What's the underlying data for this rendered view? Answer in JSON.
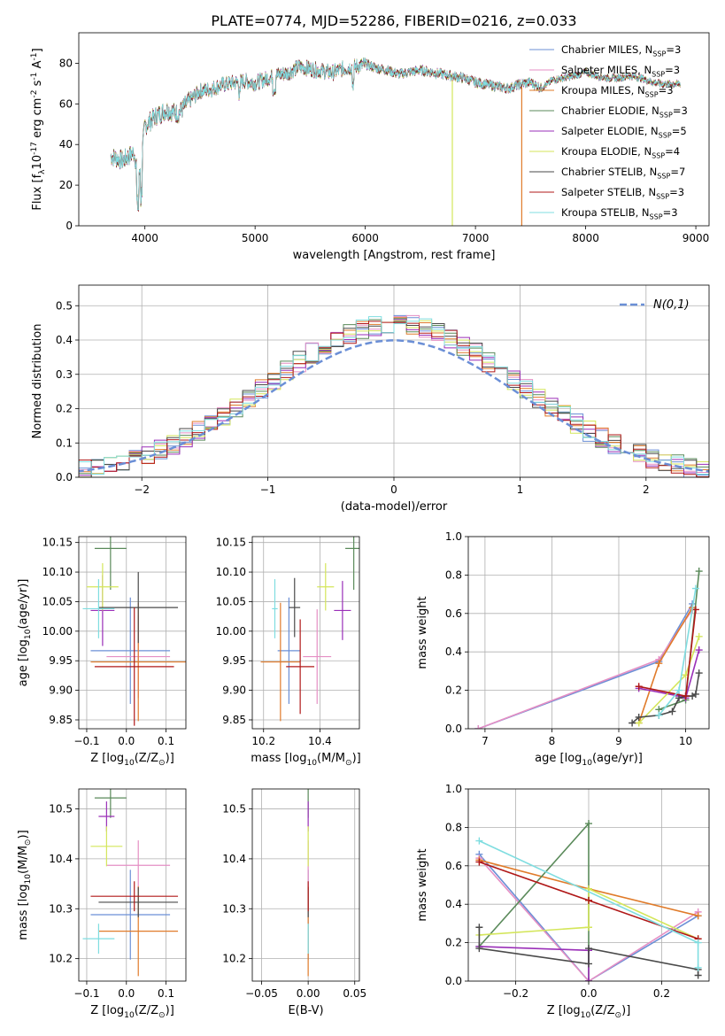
{
  "figure_title": "PLATE=0774, MJD=52286, FIBERID=0216, z=0.033",
  "colors": {
    "Chabrier MILES": "#6b8fd6",
    "Salpeter MILES": "#e58fc4",
    "Kroupa MILES": "#e07b2a",
    "Chabrier ELODIE": "#5a8a5a",
    "Salpeter ELODIE": "#9a2fb8",
    "Kroupa ELODIE": "#d4e65a",
    "Chabrier STELIB": "#4a4a4a",
    "Salpeter STELIB": "#b01818",
    "Kroupa STELIB": "#7fdde0",
    "normal_curve": "#6b8fd6"
  },
  "chart_data": [
    {
      "id": "spectrum",
      "type": "line",
      "title": "PLATE=0774, MJD=52286, FIBERID=0216, z=0.033",
      "xlabel": "wavelength [Angstrom, rest frame]",
      "ylabel": "Flux [f$_\\lambda$10$^{-17}$ erg cm$^{-2}$ s$^{-1}$ A$^{-1}$]",
      "xlim": [
        3400,
        9120
      ],
      "ylim": [
        0,
        95
      ],
      "xticks": [
        "4000",
        "5000",
        "6000",
        "7000",
        "8000",
        "9000"
      ],
      "yticks": [
        "0",
        "20",
        "40",
        "60",
        "80"
      ],
      "grid": false,
      "legend_position": "top-right",
      "x": [
        3700,
        3800,
        3900,
        3950,
        4000,
        4100,
        4200,
        4300,
        4400,
        4500,
        4600,
        4700,
        4800,
        4900,
        5000,
        5100,
        5200,
        5300,
        5400,
        5500,
        5600,
        5700,
        5800,
        5900,
        6000,
        6100,
        6200,
        6300,
        6400,
        6500,
        6600,
        6700,
        6800,
        6900,
        7000,
        7100,
        7200,
        7300,
        7400,
        7500,
        7600,
        7700,
        7800,
        7900,
        8000,
        8100,
        8200,
        8300,
        8400,
        8500,
        8600,
        8700,
        8800
      ],
      "y": [
        35,
        33,
        37,
        25,
        50,
        55,
        58,
        56,
        62,
        67,
        68,
        70,
        71,
        72,
        71,
        73,
        75,
        76,
        79,
        78,
        77,
        76,
        78,
        79,
        80,
        78,
        77,
        75,
        76,
        77,
        76,
        75,
        74,
        73,
        71,
        70,
        69,
        68,
        70,
        71,
        68,
        72,
        73,
        74,
        76,
        74,
        73,
        73,
        74,
        73,
        71,
        70,
        70
      ],
      "series": [
        {
          "name": "Chabrier MILES, N$_{SSP}$=3"
        },
        {
          "name": "Salpeter MILES, N$_{SSP}$=3"
        },
        {
          "name": "Kroupa MILES, N$_{SSP}$=3",
          "drop_at": 7420
        },
        {
          "name": "Chabrier ELODIE, N$_{SSP}$=3"
        },
        {
          "name": "Salpeter ELODIE, N$_{SSP}$=5"
        },
        {
          "name": "Kroupa ELODIE, N$_{SSP}$=4",
          "drop_at": 6790
        },
        {
          "name": "Chabrier STELIB, N$_{SSP}$=7"
        },
        {
          "name": "Salpeter STELIB, N$_{SSP}$=3"
        },
        {
          "name": "Kroupa STELIB, N$_{SSP}$=3"
        }
      ]
    },
    {
      "id": "residuals",
      "type": "line",
      "xlabel": "(data-model)/error",
      "ylabel": "Normed distribution",
      "xlim": [
        -2.5,
        2.5
      ],
      "ylim": [
        0,
        0.56
      ],
      "xticks": [
        "−2",
        "−1",
        "0",
        "1",
        "2"
      ],
      "yticks": [
        "0.0",
        "0.1",
        "0.2",
        "0.3",
        "0.4",
        "0.5"
      ],
      "grid": true,
      "legend_position": "top-right",
      "curve_label": "$\\mathcal{N}(0,1)$",
      "bin_width": 0.1
    },
    {
      "id": "age_vs_Z",
      "type": "scatter",
      "xlabel": "Z [log$_{10}$(Z/Z$_\\odot$)]",
      "ylabel": "age  [log$_{10}$(age/yr)]",
      "xlim": [
        -0.12,
        0.15
      ],
      "ylim": [
        9.835,
        10.16
      ],
      "xticks": [
        "−0.1",
        "0.0",
        "0.1"
      ],
      "yticks": [
        "9.85",
        "9.90",
        "9.95",
        "10.00",
        "10.05",
        "10.10",
        "10.15"
      ],
      "grid": true,
      "points": [
        {
          "model": "Chabrier MILES",
          "x": 0.01,
          "xerr": 0.1,
          "y": 9.967,
          "yerr": 0.09
        },
        {
          "model": "Salpeter MILES",
          "x": 0.03,
          "xerr": 0.08,
          "y": 9.957,
          "yerr": 0.07
        },
        {
          "model": "Kroupa MILES",
          "x": 0.03,
          "xerr": 0.12,
          "y": 9.948,
          "yerr": 0.1
        },
        {
          "model": "Chabrier ELODIE",
          "x": -0.04,
          "xerr": 0.04,
          "y": 10.14,
          "yerr": 0.07
        },
        {
          "model": "Salpeter ELODIE",
          "x": -0.06,
          "xerr": 0.03,
          "y": 10.035,
          "yerr": 0.06
        },
        {
          "model": "Kroupa ELODIE",
          "x": -0.06,
          "xerr": 0.04,
          "y": 10.075,
          "yerr": 0.04
        },
        {
          "model": "Chabrier STELIB",
          "x": 0.03,
          "xerr": 0.1,
          "y": 10.04,
          "yerr": 0.06
        },
        {
          "model": "Salpeter STELIB",
          "x": 0.02,
          "xerr": 0.1,
          "y": 9.94,
          "yerr": 0.1
        },
        {
          "model": "Kroupa STELIB",
          "x": -0.07,
          "xerr": 0.04,
          "y": 10.038,
          "yerr": 0.05
        }
      ]
    },
    {
      "id": "age_vs_mass",
      "type": "scatter",
      "xlabel": "mass [log$_{10}$(M/M$_\\odot$)]",
      "xlim": [
        10.16,
        10.54
      ],
      "ylim": [
        9.835,
        10.16
      ],
      "xticks": [
        "10.2",
        "10.4"
      ],
      "yticks": [
        "9.85",
        "9.90",
        "9.95",
        "10.00",
        "10.05",
        "10.10",
        "10.15"
      ],
      "grid": true,
      "points": [
        {
          "model": "Chabrier MILES",
          "x": 10.29,
          "xerr": 0.04,
          "y": 9.967,
          "yerr": 0.09
        },
        {
          "model": "Salpeter MILES",
          "x": 10.39,
          "xerr": 0.05,
          "y": 9.957,
          "yerr": 0.08
        },
        {
          "model": "Kroupa MILES",
          "x": 10.26,
          "xerr": 0.07,
          "y": 9.948,
          "yerr": 0.1
        },
        {
          "model": "Chabrier ELODIE",
          "x": 10.52,
          "xerr": 0.03,
          "y": 10.14,
          "yerr": 0.07
        },
        {
          "model": "Salpeter ELODIE",
          "x": 10.48,
          "xerr": 0.03,
          "y": 10.035,
          "yerr": 0.05
        },
        {
          "model": "Kroupa ELODIE",
          "x": 10.42,
          "xerr": 0.03,
          "y": 10.075,
          "yerr": 0.04
        },
        {
          "model": "Chabrier STELIB",
          "x": 10.31,
          "xerr": 0.02,
          "y": 10.04,
          "yerr": 0.05
        },
        {
          "model": "Salpeter STELIB",
          "x": 10.33,
          "xerr": 0.05,
          "y": 9.94,
          "yerr": 0.08
        },
        {
          "model": "Kroupa STELIB",
          "x": 10.24,
          "xerr": 0.01,
          "y": 10.038,
          "yerr": 0.05
        }
      ]
    },
    {
      "id": "weight_vs_age",
      "type": "line",
      "xlabel": "age  [log$_{10}$(age/yr)]",
      "ylabel": "mass weight",
      "xlim": [
        6.75,
        10.35
      ],
      "ylim": [
        0,
        1.0
      ],
      "xticks": [
        "7",
        "8",
        "9",
        "10"
      ],
      "yticks": [
        "0.0",
        "0.2",
        "0.4",
        "0.6",
        "0.8",
        "1.0"
      ],
      "grid": true,
      "series": [
        {
          "model": "Chabrier MILES",
          "x": [
            6.9,
            9.6,
            10.1
          ],
          "y": [
            0.0,
            0.35,
            0.65
          ]
        },
        {
          "model": "Salpeter MILES",
          "x": [
            6.9,
            9.6,
            10.1
          ],
          "y": [
            0.0,
            0.36,
            0.62
          ]
        },
        {
          "model": "Kroupa MILES",
          "x": [
            9.3,
            9.6,
            10.1
          ],
          "y": [
            0.03,
            0.34,
            0.63
          ]
        },
        {
          "model": "Chabrier ELODIE",
          "x": [
            9.6,
            10.0,
            10.2
          ],
          "y": [
            0.1,
            0.15,
            0.82
          ]
        },
        {
          "model": "Salpeter ELODIE",
          "x": [
            9.3,
            9.9,
            10.0,
            10.2
          ],
          "y": [
            0.21,
            0.17,
            0.16,
            0.41
          ]
        },
        {
          "model": "Kroupa ELODIE",
          "x": [
            9.3,
            10.0,
            10.2
          ],
          "y": [
            0.03,
            0.28,
            0.48
          ]
        },
        {
          "model": "Chabrier STELIB",
          "x": [
            9.2,
            9.3,
            9.6,
            9.8,
            9.9,
            10.0,
            10.1,
            10.15,
            10.2
          ],
          "y": [
            0.03,
            0.06,
            0.07,
            0.09,
            0.16,
            0.17,
            0.17,
            0.18,
            0.29
          ]
        },
        {
          "model": "Salpeter STELIB",
          "x": [
            9.3,
            10.0,
            10.15
          ],
          "y": [
            0.22,
            0.17,
            0.62
          ]
        },
        {
          "model": "Kroupa STELIB",
          "x": [
            9.6,
            9.9,
            10.15
          ],
          "y": [
            0.07,
            0.2,
            0.73
          ]
        }
      ]
    },
    {
      "id": "mass_vs_Z",
      "type": "scatter",
      "xlabel": "Z [log$_{10}$(Z/Z$_\\odot$)]",
      "ylabel": "mass [log$_{10}$(M/M$_\\odot$)]",
      "xlim": [
        -0.12,
        0.15
      ],
      "ylim": [
        10.155,
        10.54
      ],
      "xticks": [
        "−0.1",
        "0.0",
        "0.1"
      ],
      "yticks": [
        "10.2",
        "10.3",
        "10.4",
        "10.5"
      ],
      "grid": true,
      "points": [
        {
          "model": "Chabrier MILES",
          "x": 0.01,
          "xerr": 0.1,
          "y": 10.288,
          "yerr": 0.09
        },
        {
          "model": "Salpeter MILES",
          "x": 0.03,
          "xerr": 0.08,
          "y": 10.387,
          "yerr": 0.05
        },
        {
          "model": "Kroupa MILES",
          "x": 0.03,
          "xerr": 0.1,
          "y": 10.255,
          "yerr": 0.09
        },
        {
          "model": "Chabrier ELODIE",
          "x": -0.04,
          "xerr": 0.04,
          "y": 10.522,
          "yerr": 0.04
        },
        {
          "model": "Salpeter ELODIE",
          "x": -0.05,
          "xerr": 0.02,
          "y": 10.485,
          "yerr": 0.03
        },
        {
          "model": "Kroupa ELODIE",
          "x": -0.05,
          "xerr": 0.04,
          "y": 10.425,
          "yerr": 0.04
        },
        {
          "model": "Chabrier STELIB",
          "x": 0.03,
          "xerr": 0.1,
          "y": 10.313,
          "yerr": 0.03
        },
        {
          "model": "Salpeter STELIB",
          "x": 0.02,
          "xerr": 0.11,
          "y": 10.325,
          "yerr": 0.03
        },
        {
          "model": "Kroupa STELIB",
          "x": -0.07,
          "xerr": 0.04,
          "y": 10.24,
          "yerr": 0.03
        }
      ]
    },
    {
      "id": "mass_vs_EBV",
      "type": "scatter",
      "xlabel": "E(B-V)",
      "xlim": [
        -0.06,
        0.055
      ],
      "ylim": [
        10.155,
        10.54
      ],
      "xticks": [
        "−0.05",
        "0.00",
        "0.05"
      ],
      "yticks": [
        "10.2",
        "10.3",
        "10.4",
        "10.5"
      ],
      "grid": true,
      "points": [
        {
          "model": "Chabrier MILES",
          "x": 0.0,
          "y": 10.288,
          "yerr": 0.09
        },
        {
          "model": "Salpeter MILES",
          "x": 0.0,
          "y": 10.387,
          "yerr": 0.05
        },
        {
          "model": "Kroupa MILES",
          "x": 0.0,
          "y": 10.255,
          "yerr": 0.09
        },
        {
          "model": "Chabrier ELODIE",
          "x": 0.0,
          "y": 10.522,
          "yerr": 0.04
        },
        {
          "model": "Salpeter ELODIE",
          "x": 0.0,
          "y": 10.485,
          "yerr": 0.03
        },
        {
          "model": "Kroupa ELODIE",
          "x": 0.0,
          "y": 10.425,
          "yerr": 0.04
        },
        {
          "model": "Chabrier STELIB",
          "x": 0.0,
          "y": 10.313,
          "yerr": 0.03
        },
        {
          "model": "Salpeter STELIB",
          "x": 0.0,
          "y": 10.325,
          "yerr": 0.03
        },
        {
          "model": "Kroupa STELIB",
          "x": 0.0,
          "y": 10.24,
          "yerr": 0.03
        }
      ]
    },
    {
      "id": "weight_vs_Z",
      "type": "line",
      "xlabel": "Z [log$_{10}$(Z/Z$_\\odot$)]",
      "ylabel": "mass weight",
      "xlim": [
        -0.33,
        0.33
      ],
      "ylim": [
        0,
        1.0
      ],
      "xticks": [
        "−0.2",
        "0.0",
        "0.2"
      ],
      "yticks": [
        "0.0",
        "0.2",
        "0.4",
        "0.6",
        "0.8",
        "1.0"
      ],
      "grid": true,
      "series": [
        {
          "model": "Chabrier MILES",
          "x": [
            -0.3,
            0.0,
            0.3
          ],
          "y": [
            0.66,
            0.0,
            0.34
          ]
        },
        {
          "model": "Salpeter MILES",
          "x": [
            -0.3,
            0.0,
            0.3
          ],
          "y": [
            0.64,
            0.0,
            0.36
          ]
        },
        {
          "model": "Kroupa MILES",
          "x": [
            -0.3,
            0.0,
            0.3
          ],
          "y": [
            0.63,
            0.48,
            0.34
          ]
        },
        {
          "model": "Chabrier ELODIE",
          "x": [
            -0.3,
            0.0,
            0.0
          ],
          "y": [
            0.18,
            0.82,
            0.0
          ]
        },
        {
          "model": "Salpeter ELODIE",
          "x": [
            -0.3,
            0.0,
            0.0
          ],
          "y": [
            0.18,
            0.16,
            0.0
          ]
        },
        {
          "model": "Kroupa ELODIE",
          "x": [
            -0.3,
            0.0,
            0.0,
            0.3
          ],
          "y": [
            0.24,
            0.28,
            0.48,
            0.22
          ]
        },
        {
          "model": "Chabrier STELIB",
          "x": [
            -0.3,
            -0.3,
            0.0,
            0.0,
            0.3,
            0.3
          ],
          "y": [
            0.28,
            0.17,
            0.09,
            0.17,
            0.06,
            0.03
          ]
        },
        {
          "model": "Salpeter STELIB",
          "x": [
            -0.3,
            0.0,
            0.3
          ],
          "y": [
            0.62,
            0.42,
            0.22
          ]
        },
        {
          "model": "Kroupa STELIB",
          "x": [
            -0.3,
            0.3,
            0.3
          ],
          "y": [
            0.73,
            0.2,
            0.07
          ]
        }
      ]
    }
  ]
}
